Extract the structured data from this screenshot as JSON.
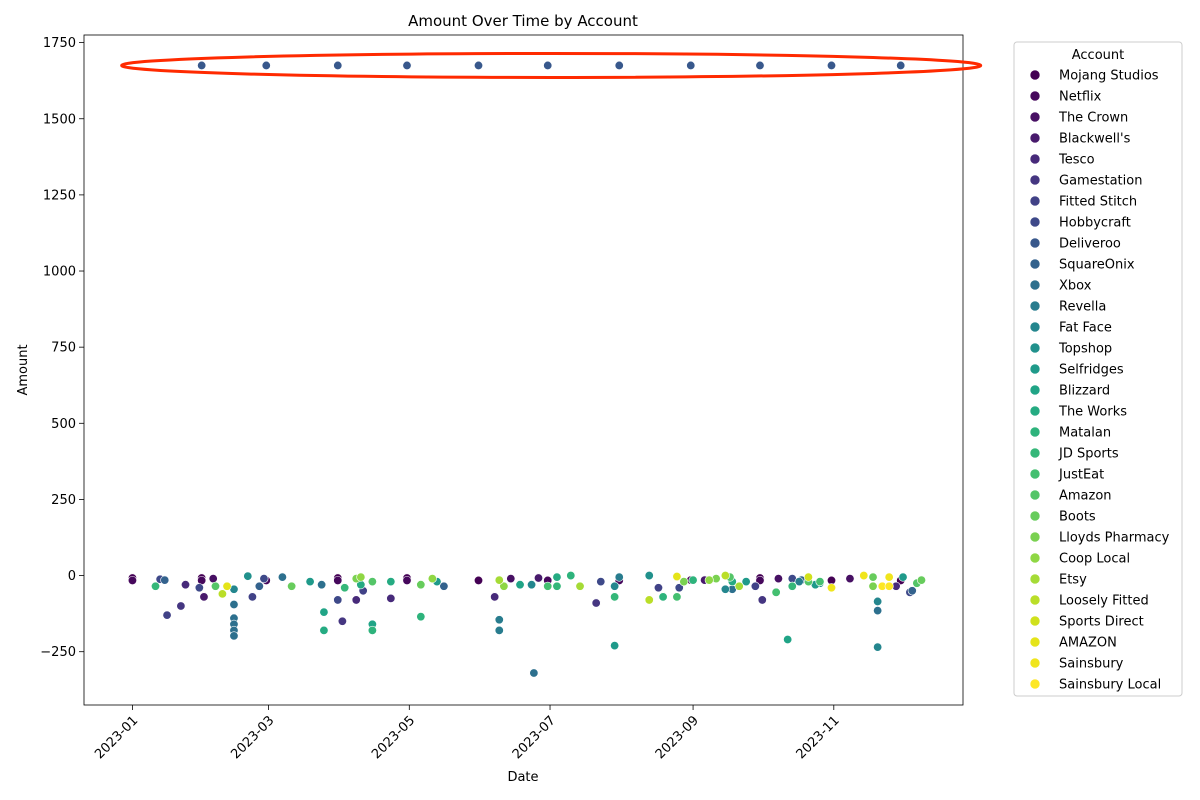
{
  "chart_data": {
    "type": "scatter",
    "title": "Amount Over Time by Account",
    "xlabel": "Date",
    "ylabel": "Amount",
    "xlim": [
      "2022-12-11",
      "2023-12-27"
    ],
    "ylim": [
      -425,
      1775
    ],
    "x_ticks": [
      "2023-01-01",
      "2023-03-01",
      "2023-05-01",
      "2023-07-01",
      "2023-09-01",
      "2023-11-01"
    ],
    "x_tick_labels": [
      "2023-01",
      "2023-03",
      "2023-05",
      "2023-07",
      "2023-09",
      "2023-11"
    ],
    "y_ticks": [
      -250,
      0,
      250,
      500,
      750,
      1000,
      1250,
      1500,
      1750
    ],
    "y_tick_labels": [
      "−250",
      "0",
      "250",
      "500",
      "750",
      "1000",
      "1250",
      "1500",
      "1750"
    ],
    "grid": false,
    "legend": {
      "title": "Account",
      "placement": "outside-right"
    },
    "series": [
      {
        "name": "Mojang Studios",
        "color": "#440154",
        "points": [
          [
            "2023-01-01",
            -8
          ],
          [
            "2023-01-31",
            -8
          ],
          [
            "2023-03-31",
            -8
          ],
          [
            "2023-04-30",
            -8
          ],
          [
            "2023-05-31",
            -16
          ],
          [
            "2023-08-31",
            -15
          ],
          [
            "2023-09-30",
            -8
          ],
          [
            "2023-10-31",
            -16
          ],
          [
            "2023-11-30",
            -16
          ]
        ]
      },
      {
        "name": "Netflix",
        "color": "#46085c",
        "points": [
          [
            "2023-01-01",
            -16
          ],
          [
            "2023-01-31",
            -16
          ],
          [
            "2023-02-28",
            -16
          ],
          [
            "2023-03-31",
            -16
          ],
          [
            "2023-04-30",
            -16
          ],
          [
            "2023-06-30",
            -16
          ],
          [
            "2023-07-31",
            -16
          ],
          [
            "2023-09-30",
            -16
          ]
        ]
      },
      {
        "name": "The Crown",
        "color": "#471063",
        "points": [
          [
            "2023-02-05",
            -10
          ],
          [
            "2023-06-14",
            -10
          ],
          [
            "2023-10-08",
            -10
          ],
          [
            "2023-11-08",
            -10
          ]
        ]
      },
      {
        "name": "Blackwell's",
        "color": "#481a6c",
        "points": [
          [
            "2023-02-01",
            -70
          ],
          [
            "2023-06-26",
            -8
          ],
          [
            "2023-09-06",
            -15
          ]
        ]
      },
      {
        "name": "Tesco",
        "color": "#472a7a",
        "points": [
          [
            "2023-01-24",
            -30
          ],
          [
            "2023-04-08",
            -80
          ],
          [
            "2023-04-23",
            -75
          ],
          [
            "2023-06-07",
            -70
          ],
          [
            "2023-11-28",
            -35
          ]
        ]
      },
      {
        "name": "Gamestation",
        "color": "#453681",
        "points": [
          [
            "2023-01-22",
            -100
          ],
          [
            "2023-04-02",
            -150
          ],
          [
            "2023-07-21",
            -90
          ],
          [
            "2023-10-01",
            -80
          ]
        ]
      },
      {
        "name": "Fitted Stitch",
        "color": "#414287",
        "points": [
          [
            "2023-01-16",
            -130
          ],
          [
            "2023-02-22",
            -70
          ],
          [
            "2023-04-11",
            -50
          ],
          [
            "2023-08-17",
            -40
          ],
          [
            "2023-09-28",
            -35
          ]
        ]
      },
      {
        "name": "Hobbycraft",
        "color": "#3e4989",
        "points": [
          [
            "2023-01-13",
            -12
          ],
          [
            "2023-01-30",
            -40
          ],
          [
            "2023-02-27",
            -10
          ],
          [
            "2023-03-31",
            -80
          ],
          [
            "2023-07-23",
            -20
          ],
          [
            "2023-08-26",
            -40
          ],
          [
            "2023-10-14",
            -10
          ],
          [
            "2023-12-04",
            -55
          ]
        ]
      },
      {
        "name": "Deliveroo",
        "color": "#38588c",
        "points": [
          [
            "2023-01-31",
            1675
          ],
          [
            "2023-02-28",
            1675
          ],
          [
            "2023-03-31",
            1675
          ],
          [
            "2023-04-30",
            1675
          ],
          [
            "2023-05-31",
            1675
          ],
          [
            "2023-06-30",
            1675
          ],
          [
            "2023-07-31",
            1675
          ],
          [
            "2023-08-31",
            1675
          ],
          [
            "2023-09-30",
            1675
          ],
          [
            "2023-10-31",
            1675
          ],
          [
            "2023-11-30",
            1675
          ]
        ]
      },
      {
        "name": "SquareOnix",
        "color": "#33628d",
        "points": [
          [
            "2023-01-15",
            -15
          ],
          [
            "2023-02-25",
            -35
          ],
          [
            "2023-05-16",
            -35
          ],
          [
            "2023-10-18",
            -15
          ],
          [
            "2023-12-05",
            -50
          ]
        ]
      },
      {
        "name": "Xbox",
        "color": "#2d708e",
        "points": [
          [
            "2023-02-14",
            -95
          ],
          [
            "2023-02-14",
            -140
          ],
          [
            "2023-02-14",
            -160
          ],
          [
            "2023-02-14",
            -180
          ],
          [
            "2023-02-14",
            -198
          ],
          [
            "2023-03-07",
            -5
          ],
          [
            "2023-03-24",
            -30
          ],
          [
            "2023-06-24",
            -320
          ],
          [
            "2023-09-18",
            -45
          ],
          [
            "2023-11-20",
            -115
          ]
        ]
      },
      {
        "name": "Revella",
        "color": "#287c8e",
        "points": [
          [
            "2023-06-09",
            -145
          ],
          [
            "2023-06-09",
            -180
          ],
          [
            "2023-07-31",
            -5
          ],
          [
            "2023-10-17",
            -20
          ]
        ]
      },
      {
        "name": "Fat Face",
        "color": "#24868e",
        "points": [
          [
            "2023-02-14",
            -45
          ],
          [
            "2023-06-23",
            -30
          ],
          [
            "2023-07-29",
            -35
          ],
          [
            "2023-09-15",
            -45
          ],
          [
            "2023-11-20",
            -235
          ],
          [
            "2023-11-20",
            -85
          ]
        ]
      },
      {
        "name": "Topshop",
        "color": "#21918c",
        "points": [
          [
            "2023-02-20",
            -2
          ],
          [
            "2023-08-13",
            0
          ],
          [
            "2023-10-14",
            -35
          ],
          [
            "2023-10-26",
            -25
          ]
        ]
      },
      {
        "name": "Selfridges",
        "color": "#1f9a8a",
        "points": [
          [
            "2023-03-19",
            -20
          ],
          [
            "2023-05-13",
            -20
          ],
          [
            "2023-07-29",
            -230
          ],
          [
            "2023-09-24",
            -20
          ],
          [
            "2023-10-24",
            -30
          ],
          [
            "2023-12-01",
            -5
          ]
        ]
      },
      {
        "name": "Blizzard",
        "color": "#20a486",
        "points": [
          [
            "2023-03-25",
            -120
          ],
          [
            "2023-04-15",
            -160
          ],
          [
            "2023-06-18",
            -30
          ],
          [
            "2023-10-12",
            -210
          ]
        ]
      },
      {
        "name": "The Works",
        "color": "#25ab82",
        "points": [
          [
            "2023-03-25",
            -180
          ],
          [
            "2023-04-10",
            -30
          ],
          [
            "2023-04-23",
            -20
          ],
          [
            "2023-07-04",
            -5
          ],
          [
            "2023-09-18",
            -20
          ]
        ]
      },
      {
        "name": "Matalan",
        "color": "#2eb37c",
        "points": [
          [
            "2023-04-15",
            -180
          ],
          [
            "2023-05-06",
            -135
          ],
          [
            "2023-07-10",
            0
          ],
          [
            "2023-08-19",
            -70
          ],
          [
            "2023-09-01",
            -15
          ]
        ]
      },
      {
        "name": "JD Sports",
        "color": "#35b779",
        "points": [
          [
            "2023-01-11",
            -35
          ],
          [
            "2023-04-03",
            -40
          ],
          [
            "2023-07-04",
            -35
          ],
          [
            "2023-07-29",
            -70
          ],
          [
            "2023-10-14",
            -35
          ]
        ]
      },
      {
        "name": "JustEat",
        "color": "#44bf70",
        "points": [
          [
            "2023-06-30",
            -35
          ],
          [
            "2023-08-25",
            -70
          ],
          [
            "2023-10-07",
            -55
          ],
          [
            "2023-10-26",
            -20
          ]
        ]
      },
      {
        "name": "Amazon",
        "color": "#54c568",
        "points": [
          [
            "2023-02-06",
            -35
          ],
          [
            "2023-04-15",
            -20
          ],
          [
            "2023-09-17",
            -5
          ],
          [
            "2023-10-21",
            -20
          ],
          [
            "2023-12-07",
            -25
          ]
        ]
      },
      {
        "name": "Boots",
        "color": "#67cc5c",
        "points": [
          [
            "2023-03-11",
            -35
          ],
          [
            "2023-05-06",
            -30
          ],
          [
            "2023-11-18",
            -5
          ],
          [
            "2023-12-09",
            -15
          ]
        ]
      },
      {
        "name": "Lloyds Pharmacy",
        "color": "#7ad151",
        "points": [
          [
            "2023-04-08",
            -10
          ],
          [
            "2023-08-28",
            -20
          ],
          [
            "2023-09-11",
            -10
          ],
          [
            "2023-11-18",
            -35
          ]
        ]
      },
      {
        "name": "Coop Local",
        "color": "#8fd744",
        "points": [
          [
            "2023-04-10",
            -5
          ],
          [
            "2023-05-11",
            -10
          ],
          [
            "2023-06-11",
            -35
          ],
          [
            "2023-09-08",
            -15
          ]
        ]
      },
      {
        "name": "Etsy",
        "color": "#a5db36",
        "points": [
          [
            "2023-06-09",
            -15
          ],
          [
            "2023-07-14",
            -35
          ],
          [
            "2023-09-21",
            -35
          ]
        ]
      },
      {
        "name": "Loosely Fitted",
        "color": "#bade28",
        "points": [
          [
            "2023-02-09",
            -60
          ],
          [
            "2023-08-13",
            -80
          ],
          [
            "2023-09-15",
            0
          ]
        ]
      },
      {
        "name": "Sports Direct",
        "color": "#d0e11c",
        "points": [
          [
            "2023-08-25",
            -5
          ],
          [
            "2023-10-21",
            -5
          ]
        ]
      },
      {
        "name": "AMAZON",
        "color": "#e5e419",
        "points": [
          [
            "2023-02-11",
            -35
          ],
          [
            "2023-08-25",
            -3
          ]
        ]
      },
      {
        "name": "Sainsbury",
        "color": "#f0e51c",
        "points": [
          [
            "2023-10-31",
            -40
          ],
          [
            "2023-11-14",
            0
          ],
          [
            "2023-11-25",
            -5
          ]
        ]
      },
      {
        "name": "Sainsbury Local",
        "color": "#fde725",
        "points": [
          [
            "2023-11-22",
            -35
          ],
          [
            "2023-11-25",
            -35
          ]
        ]
      }
    ],
    "annotation": {
      "type": "ellipse",
      "target": "Deliveroo",
      "color": "#ff2a00"
    }
  }
}
